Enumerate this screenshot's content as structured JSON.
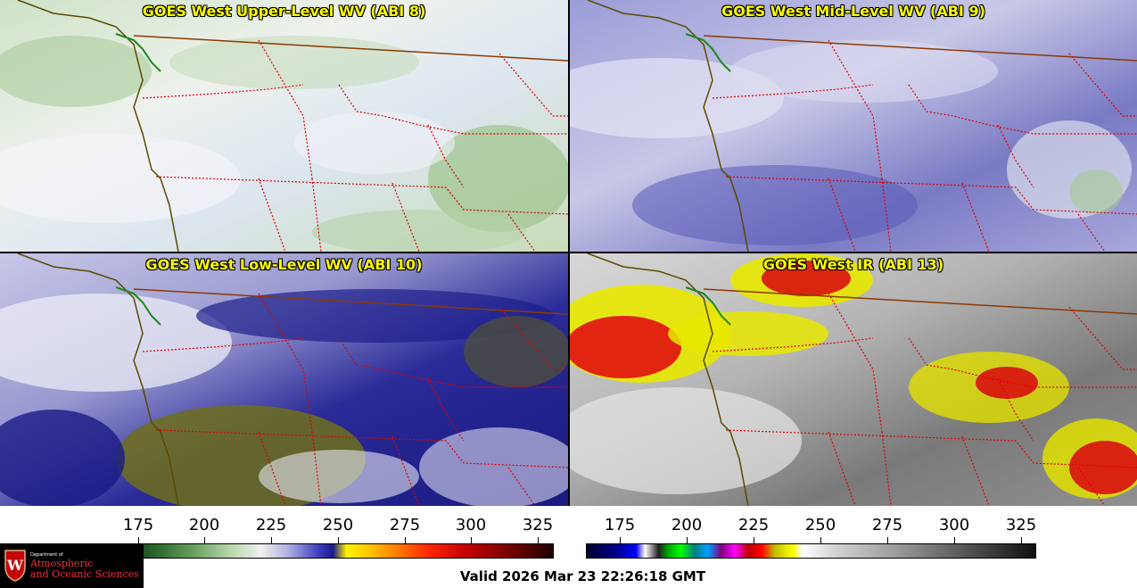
{
  "panels": [
    {
      "title": "GOES West Upper-Level WV (ABI 8)",
      "colors": [
        "#e8eef0",
        "#c6dcc0",
        "#9cc48e",
        "#f4f4f8"
      ]
    },
    {
      "title": "GOES West Mid-Level WV (ABI 9)",
      "colors": [
        "#8c8cd0",
        "#b8b8e4",
        "#e8e8f4",
        "#5a5ab4"
      ]
    },
    {
      "title": "GOES West Low-Level WV (ABI 10)",
      "colors": [
        "#1a1a8c",
        "#8c8cc8",
        "#e8e8f4",
        "#6a6a18"
      ]
    },
    {
      "title": "GOES West IR (ABI 13)",
      "colors": [
        "#7a7a7a",
        "#c8c8c8",
        "#ffff00",
        "#e01010"
      ]
    }
  ],
  "colorbar_left": {
    "ticks": [
      "175",
      "200",
      "225",
      "250",
      "275",
      "300",
      "325"
    ]
  },
  "colorbar_right": {
    "ticks": [
      "175",
      "200",
      "225",
      "250",
      "275",
      "300",
      "325"
    ]
  },
  "logo": {
    "dept": "Department of",
    "line1": "Atmospheric",
    "line2": "and Oceanic Sciences"
  },
  "valid_text": "Valid 2026 Mar 23 22:26:18 GMT",
  "colors": {
    "state_border": "#e00000",
    "intl_border": "#8b3a00",
    "coastline": "#5a4a00",
    "title": "#ffff00"
  }
}
